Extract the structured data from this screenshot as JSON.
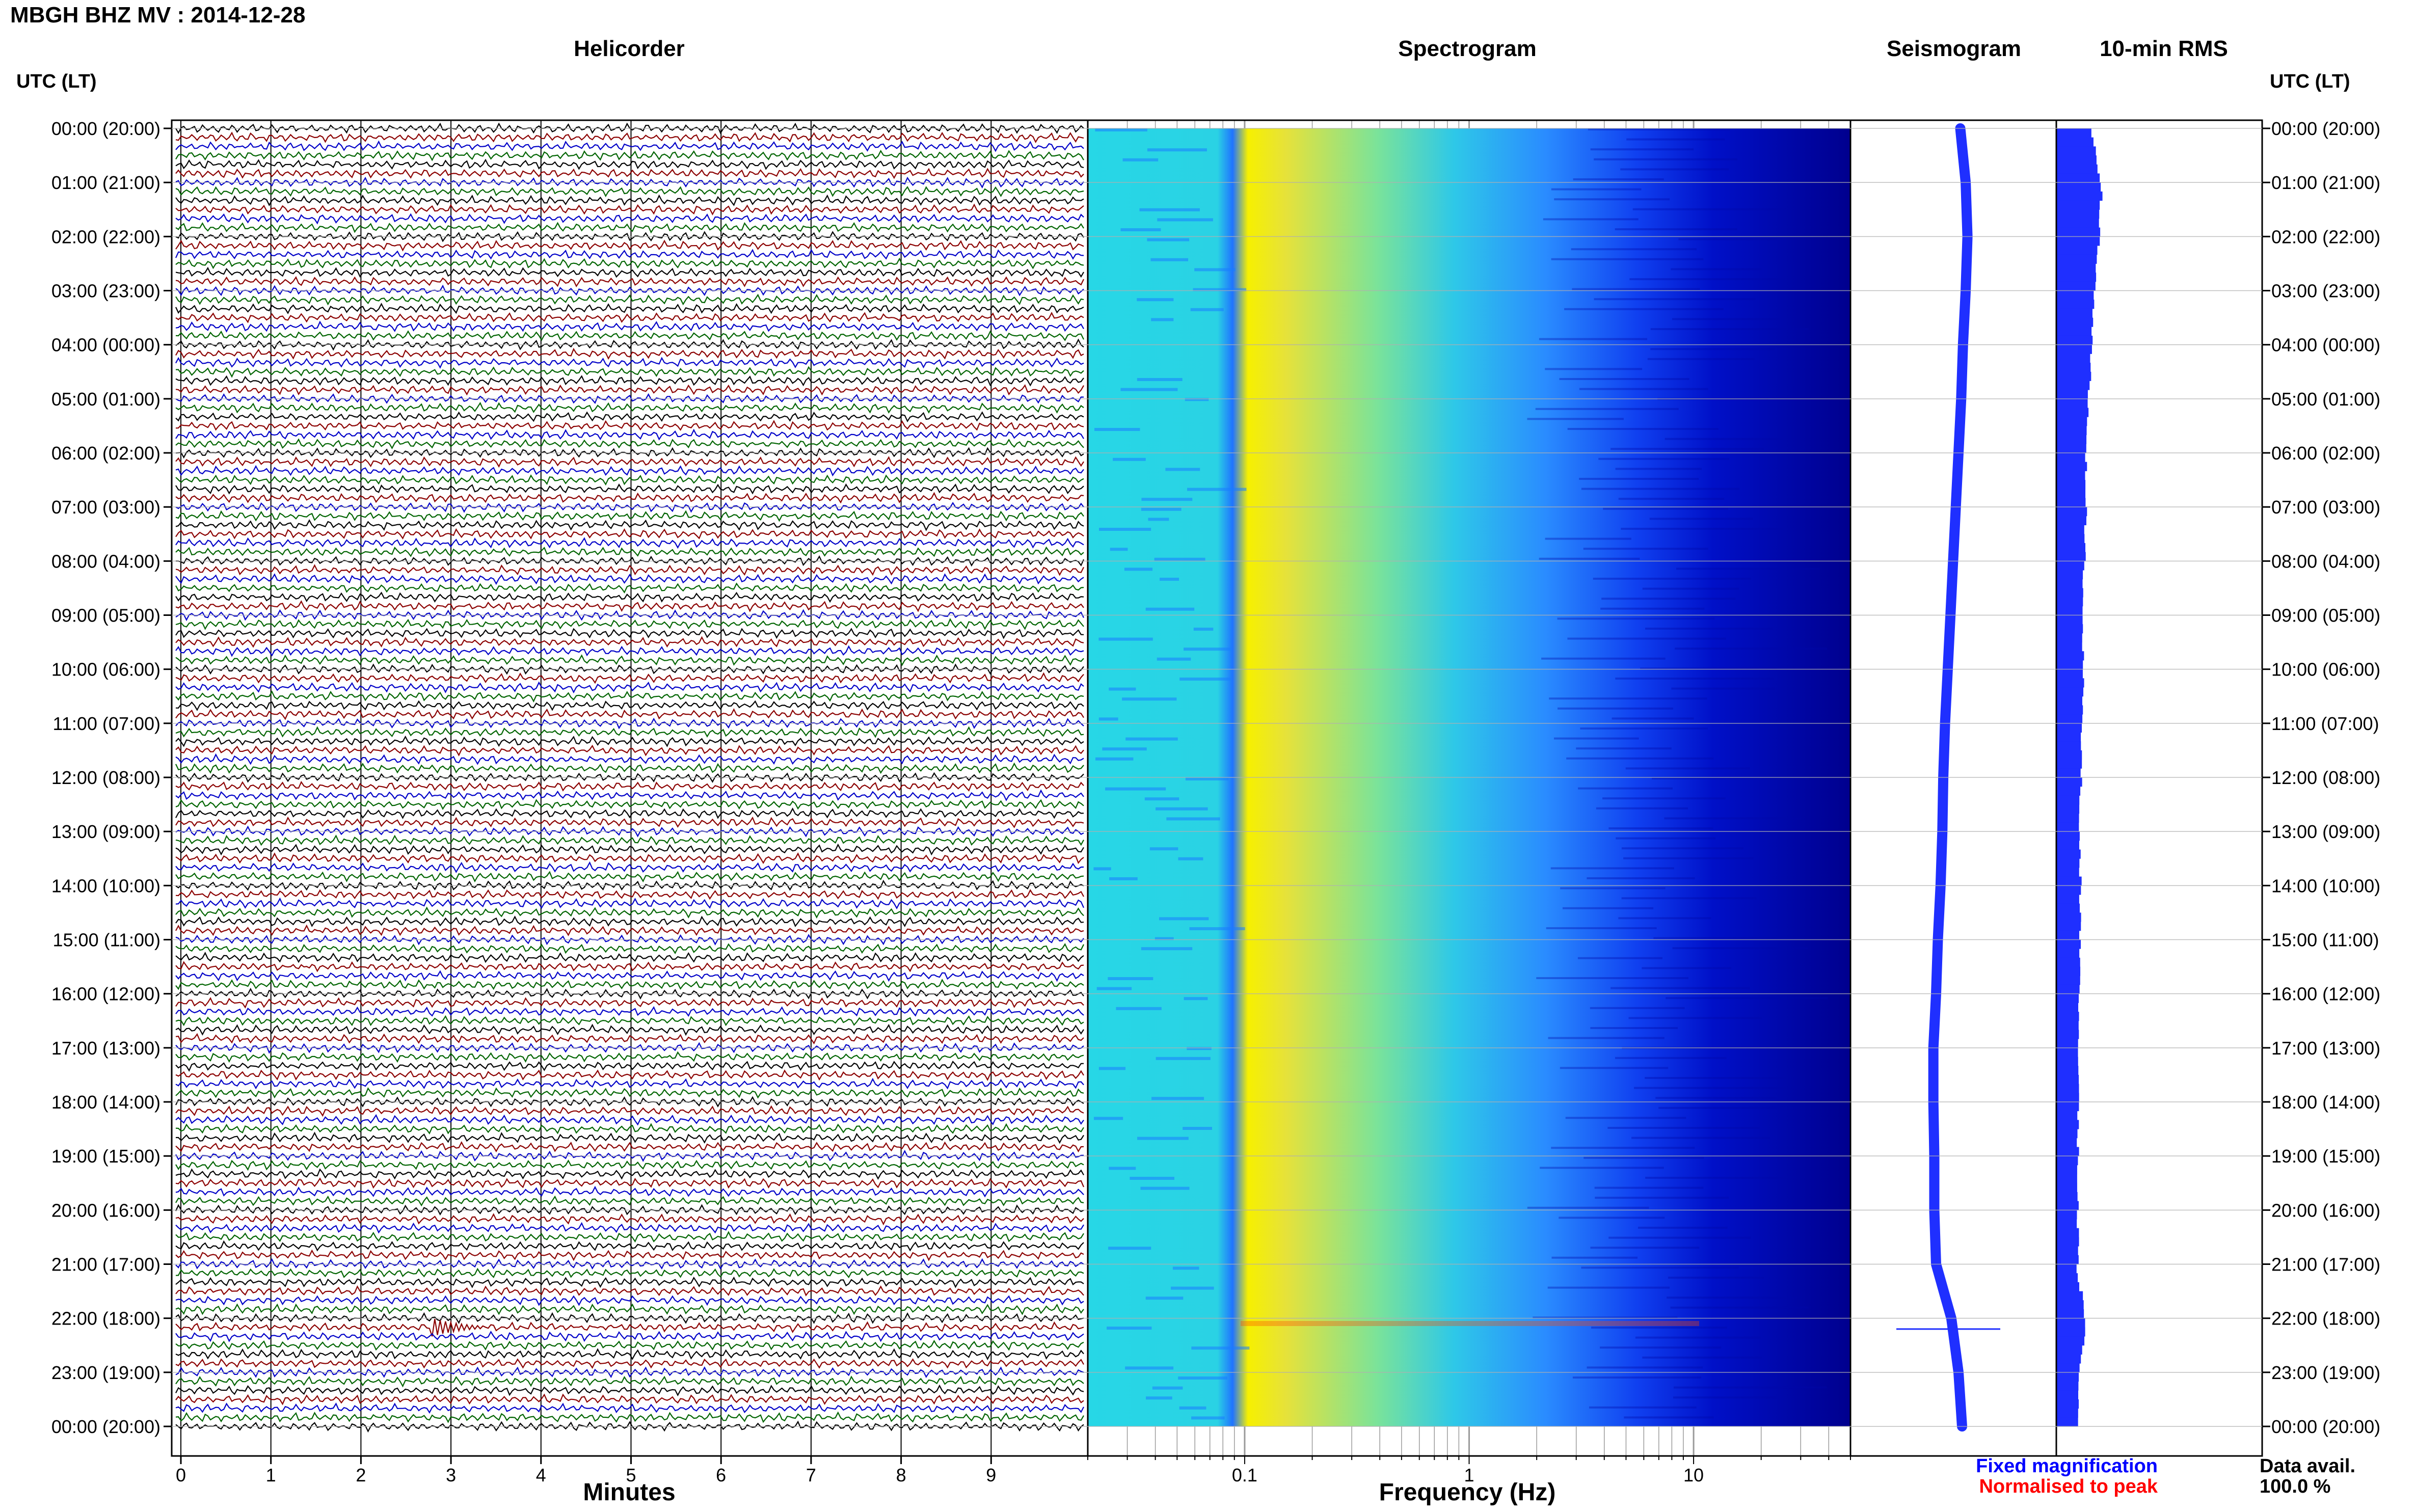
{
  "header": {
    "title": "MBGH BHZ MV : 2014-12-28"
  },
  "panels": {
    "helicorder_title": "Helicorder",
    "spectrogram_title": "Spectrogram",
    "seismogram_title": "Seismogram",
    "rms_title": "10-min RMS"
  },
  "axes": {
    "left_time_label": "UTC (LT)",
    "right_time_label": "UTC (LT)",
    "minutes_label": "Minutes",
    "frequency_label": "Frequency (Hz)"
  },
  "legend": {
    "fixed_label": "Fixed magnification",
    "normalised_label": "Normalised to peak",
    "data_avail_label": "Data avail.",
    "data_avail_value": "100.0 %"
  },
  "colors": {
    "trace_cycle": [
      "#000000",
      "#8b0000",
      "#0000c8",
      "#006400"
    ],
    "seismogram": "#1f2fff",
    "rms_fill": "#1f2fff",
    "fixed_text": "#0000ff",
    "normalised_text": "#ff0000",
    "spec_low": "#00008b",
    "spec_high": "#ff3300"
  },
  "chart_data": {
    "type": "multi-panel-seismic",
    "time_ticks": [
      "00:00 (20:00)",
      "01:00 (21:00)",
      "02:00 (22:00)",
      "03:00 (23:00)",
      "04:00 (00:00)",
      "05:00 (01:00)",
      "06:00 (02:00)",
      "07:00 (03:00)",
      "08:00 (04:00)",
      "09:00 (05:00)",
      "10:00 (06:00)",
      "11:00 (07:00)",
      "12:00 (08:00)",
      "13:00 (09:00)",
      "14:00 (10:00)",
      "15:00 (11:00)",
      "16:00 (12:00)",
      "17:00 (13:00)",
      "18:00 (14:00)",
      "19:00 (15:00)",
      "20:00 (16:00)",
      "21:00 (17:00)",
      "22:00 (18:00)",
      "23:00 (19:00)",
      "00:00 (20:00)"
    ],
    "helicorder": {
      "xlabel": "Minutes",
      "xlim": [
        0,
        10
      ],
      "x_ticks": [
        "0",
        "1",
        "2",
        "3",
        "4",
        "5",
        "6",
        "7",
        "8",
        "9"
      ],
      "line_minutes": 10,
      "lines_per_hour": 6,
      "total_hours": 24,
      "event": {
        "hour": 22,
        "line": 1,
        "minute": 2.8,
        "amplitude_relative": 6
      }
    },
    "spectrogram": {
      "xlabel": "Frequency (Hz)",
      "scale": "log",
      "xlim": [
        0.02,
        50
      ],
      "x_ticks": [
        "0.1",
        "1",
        "10"
      ],
      "dominant_band_hz": [
        0.12,
        0.3
      ]
    },
    "seismogram": {
      "samples_per_hour": 1,
      "offsets": [
        0.02,
        0.08,
        0.1,
        0.08,
        0.05,
        0.03,
        0.0,
        -0.03,
        -0.06,
        -0.09,
        -0.12,
        -0.15,
        -0.17,
        -0.18,
        -0.2,
        -0.23,
        -0.25,
        -0.28,
        -0.28,
        -0.27,
        -0.27,
        -0.25,
        -0.08,
        0.0,
        0.04
      ],
      "event_hour": 22.2
    },
    "rms": {
      "interval_minutes": 10,
      "hourly_values": [
        0.68,
        0.85,
        0.8,
        0.72,
        0.66,
        0.6,
        0.56,
        0.55,
        0.52,
        0.5,
        0.5,
        0.48,
        0.46,
        0.44,
        0.45,
        0.44,
        0.43,
        0.42,
        0.42,
        0.4,
        0.4,
        0.4,
        0.55,
        0.42,
        0.4
      ],
      "xlim": [
        0,
        1
      ]
    }
  }
}
